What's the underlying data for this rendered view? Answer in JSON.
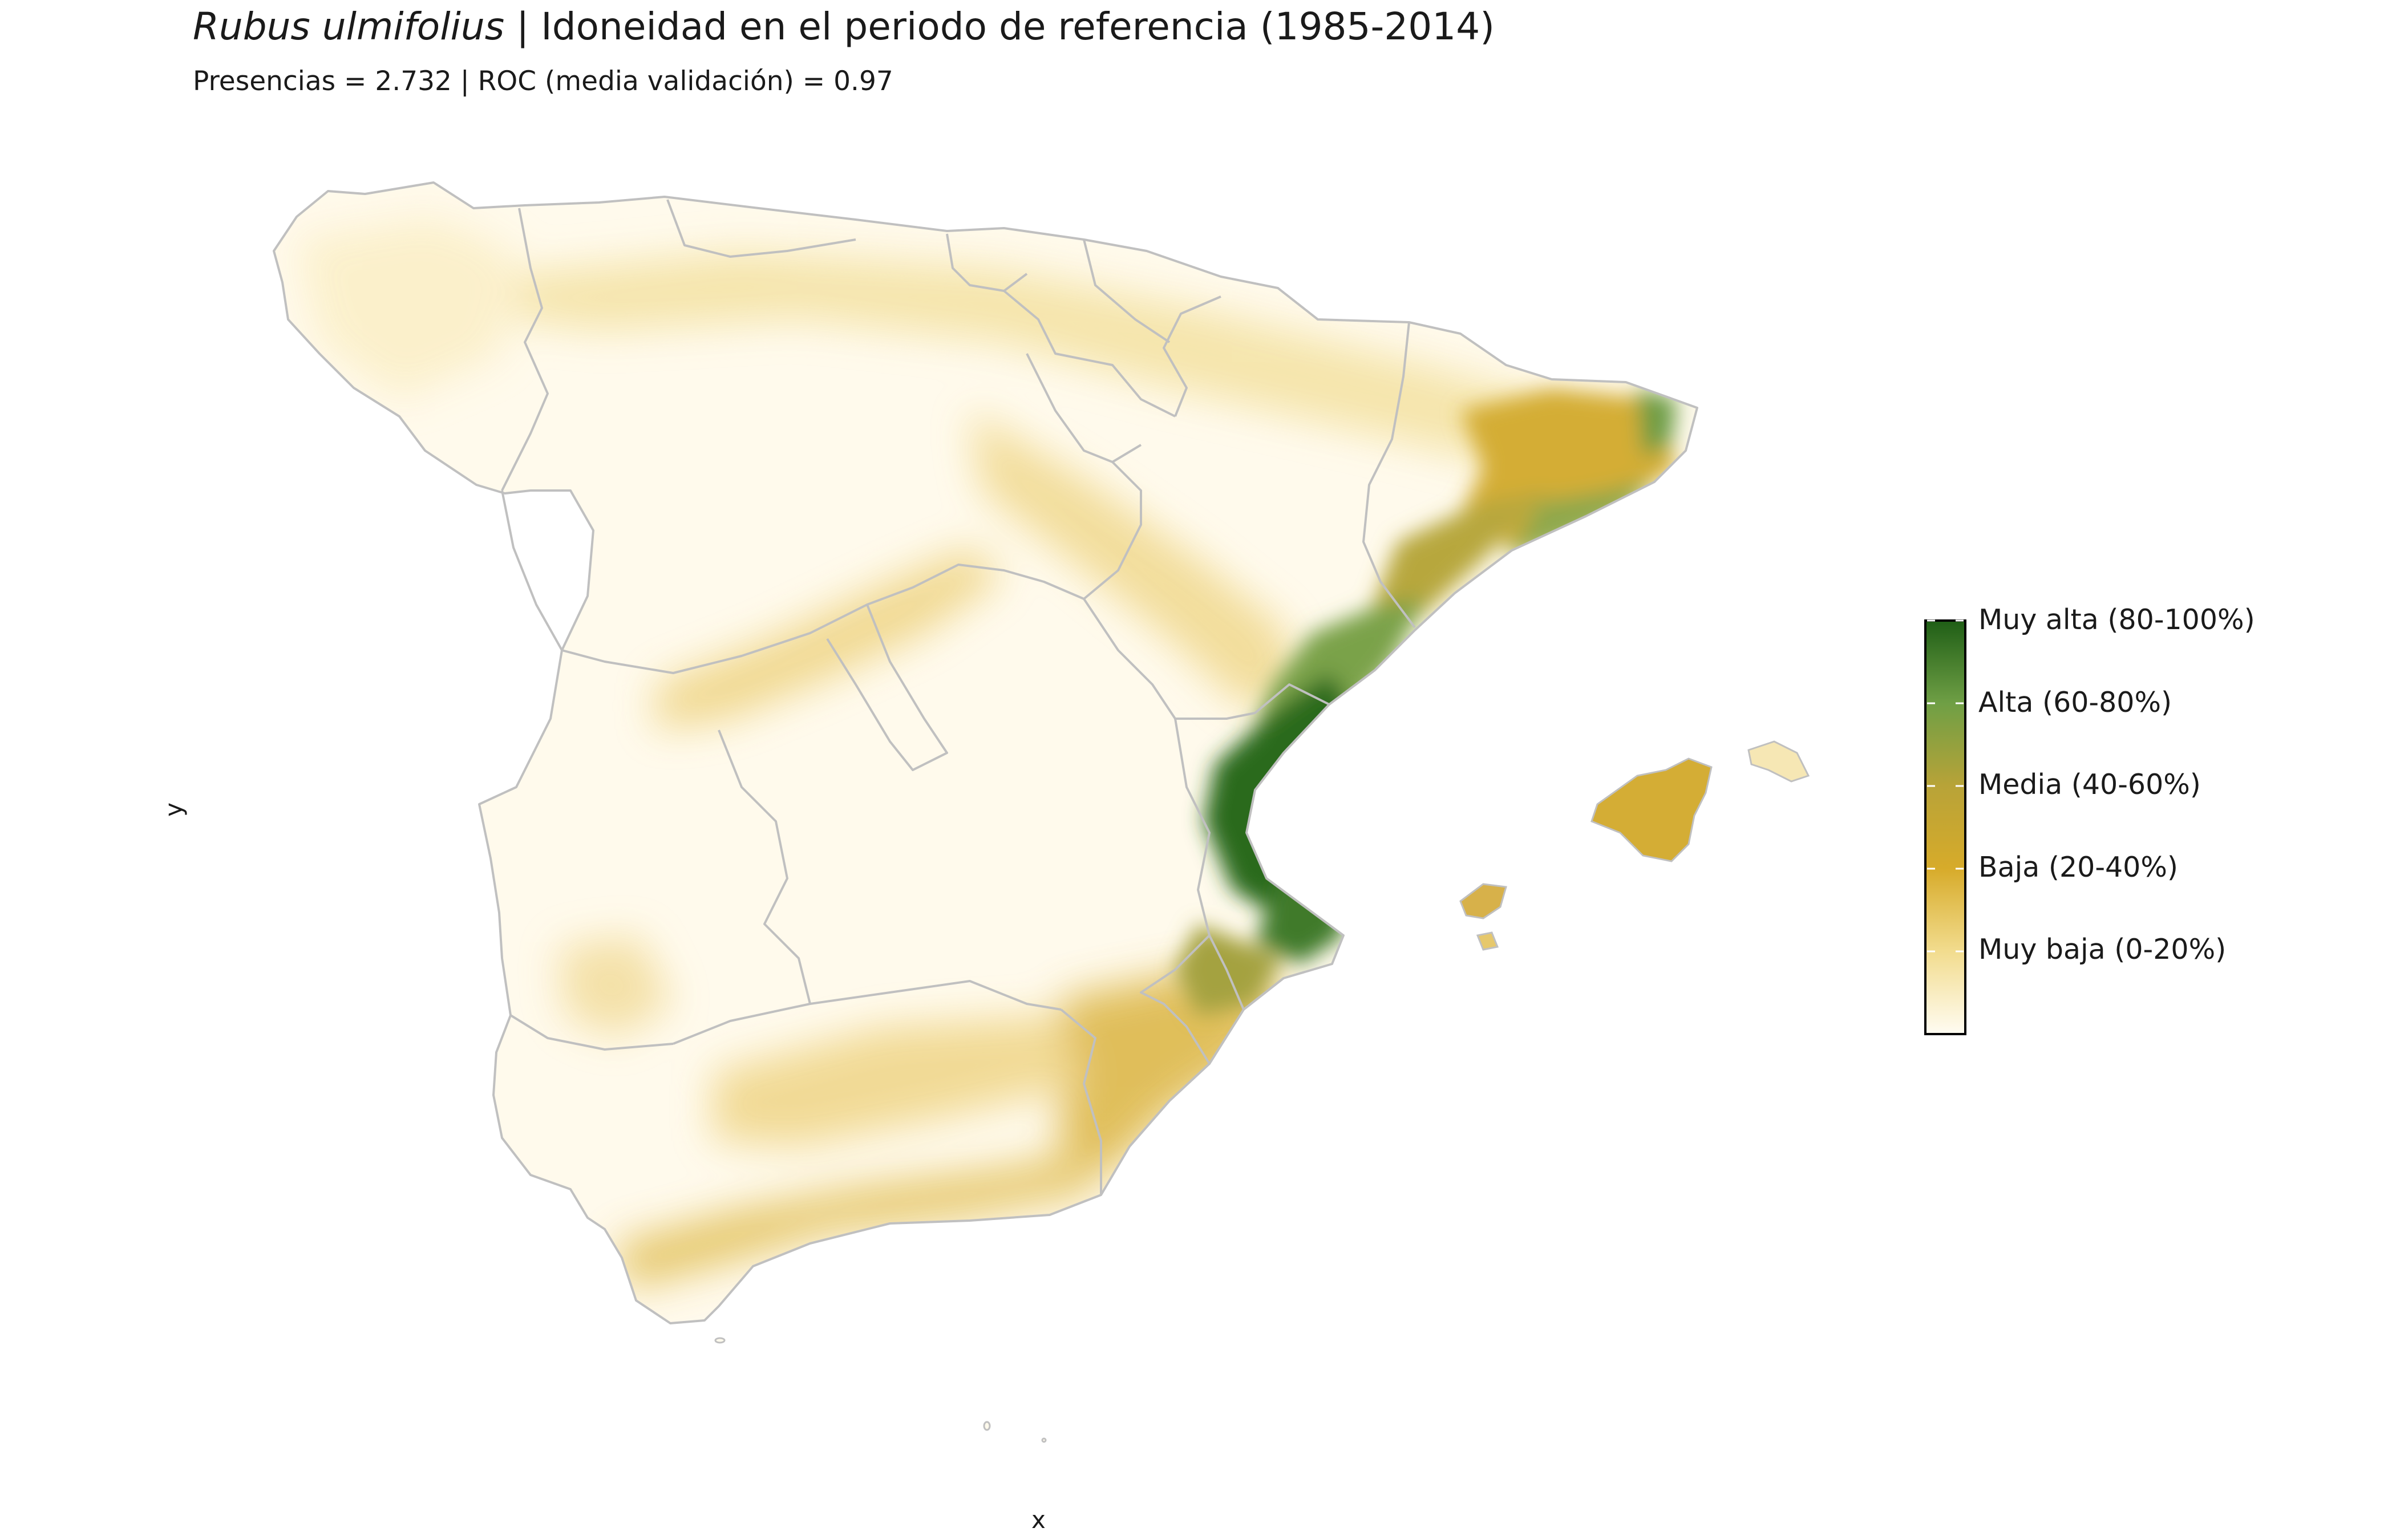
{
  "title": {
    "species": "Rubus ulmifolius",
    "rest": " | Idoneidad en el periodo de referencia (1985-2014)"
  },
  "subtitle": "Presencias = 2.732  |  ROC (media validación) = 0.97",
  "axes": {
    "xlabel": "x",
    "ylabel": "y"
  },
  "legend": {
    "labels": [
      "Muy alta (80-100%)",
      "Alta (60-80%)",
      "Media (40-60%)",
      "Baja (20-40%)",
      "Muy baja (0-20%)"
    ],
    "colors": [
      "#1f5e16",
      "#75a848",
      "#c8a21c",
      "#e8c85a",
      "#fffcf2"
    ]
  },
  "colors": {
    "very_low": "#fffaec",
    "low": "#f2dc8e",
    "medium": "#d4ad35",
    "high": "#7aa24a",
    "very_high": "#2b6a1f",
    "border": "#c0c0c0"
  }
}
